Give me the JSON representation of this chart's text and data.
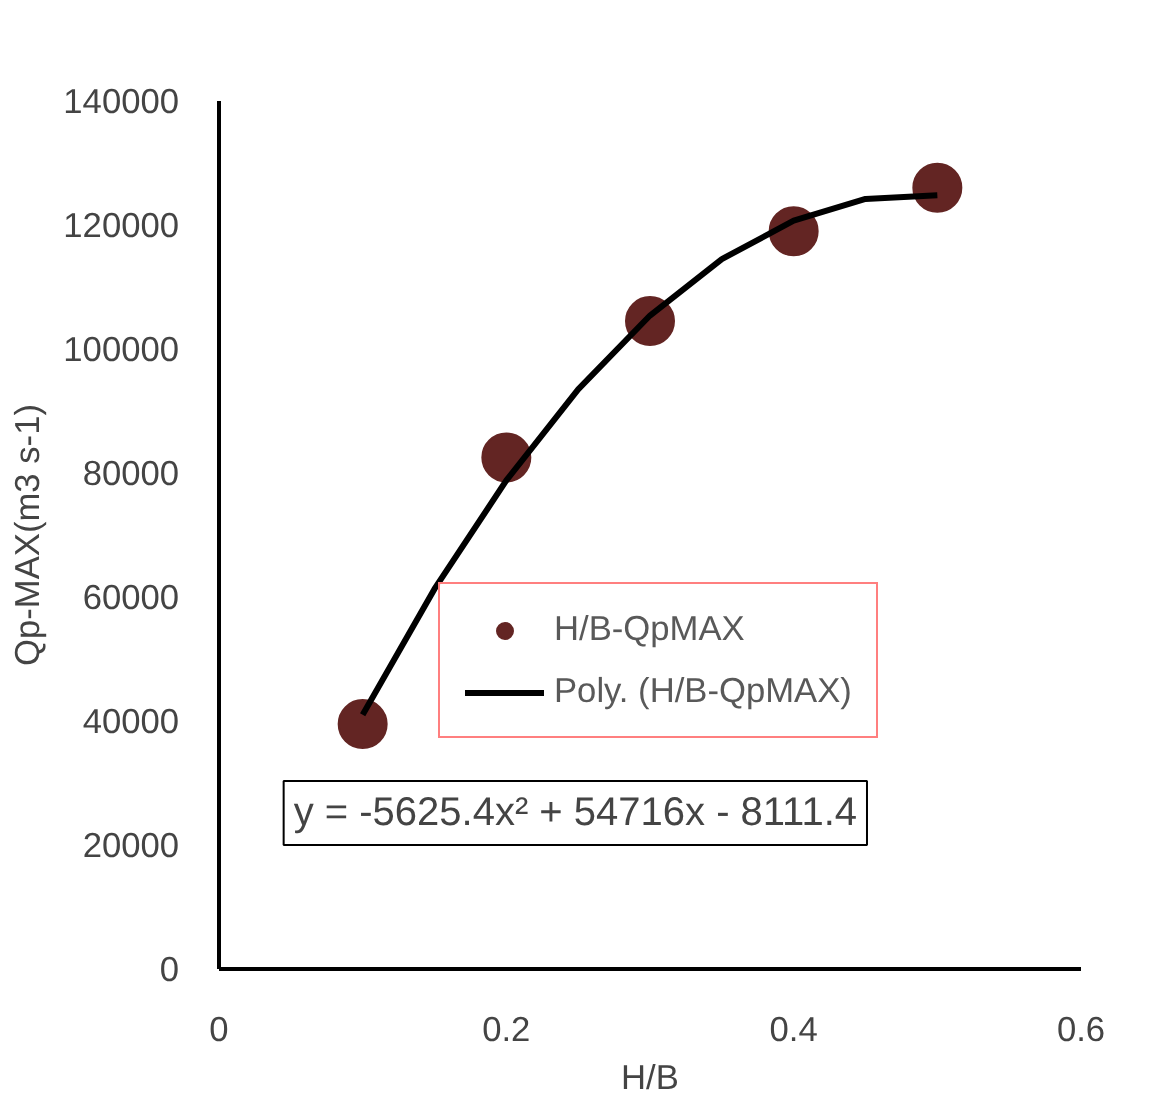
{
  "chart_data": {
    "type": "scatter",
    "xlabel": "H/B",
    "ylabel": "Qp-MAX(m3 s-1)",
    "x": [
      0.1,
      0.2,
      0.3,
      0.4,
      0.5
    ],
    "series": [
      {
        "name": "H/B-QpMAX",
        "color": "#632523",
        "marker": "circle",
        "values": [
          39500,
          82500,
          104500,
          119000,
          126000
        ]
      },
      {
        "name": "Poly. (H/B-QpMAX)",
        "color": "#000000",
        "type": "line",
        "marker": "none",
        "line_style": "solid",
        "x": [
          0.1,
          0.15,
          0.2,
          0.25,
          0.3,
          0.35,
          0.4,
          0.45,
          0.5
        ],
        "values": [
          41000,
          61300,
          78800,
          93500,
          105400,
          114500,
          120700,
          124200,
          124800
        ]
      }
    ],
    "xlim": [
      0,
      0.6
    ],
    "xticks": [
      0,
      0.2,
      0.4,
      0.6
    ],
    "ylim": [
      0,
      140000
    ],
    "yticks": [
      0,
      20000,
      40000,
      60000,
      80000,
      100000,
      120000,
      140000
    ],
    "grid": false,
    "legend": "right",
    "annotations": [
      "y = -5625.4x² + 54716x - 8111.4"
    ]
  }
}
